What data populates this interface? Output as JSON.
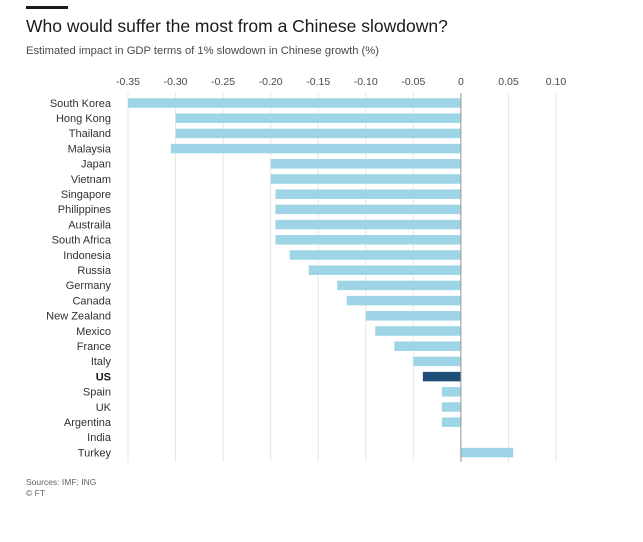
{
  "header": {
    "title": "Who would suffer the most from a Chinese slowdown?",
    "subtitle": "Estimated impact in GDP terms of 1% slowdown in Chinese growth (%)"
  },
  "footer": {
    "sources": "Sources: IMF; ING",
    "credit": "© FT"
  },
  "colors": {
    "bar": "#9dd5e6",
    "highlight": "#1f4e79",
    "grid": "#e6e6e6",
    "zero_line": "#999999"
  },
  "chart_data": {
    "type": "bar",
    "orientation": "horizontal",
    "title": "Who would suffer the most from a Chinese slowdown?",
    "subtitle": "Estimated impact in GDP terms of 1% slowdown in Chinese growth (%)",
    "xlim": [
      -0.35,
      0.1
    ],
    "xticks": [
      -0.35,
      -0.3,
      -0.25,
      -0.2,
      -0.15,
      -0.1,
      -0.05,
      0,
      0.05,
      0.1
    ],
    "xtick_labels": [
      "-0.35",
      "-0.30",
      "-0.25",
      "-0.20",
      "-0.15",
      "-0.10",
      "-0.05",
      "0",
      "0.05",
      "0.10"
    ],
    "axis_position": "top",
    "grid": true,
    "highlighted_category": "US",
    "categories": [
      "South Korea",
      "Hong Kong",
      "Thailand",
      "Malaysia",
      "Japan",
      "Vietnam",
      "Singapore",
      "Philippines",
      "Austraila",
      "South Africa",
      "Indonesia",
      "Russia",
      "Germany",
      "Canada",
      "New Zealand",
      "Mexico",
      "France",
      "Italy",
      "US",
      "Spain",
      "UK",
      "Argentina",
      "India",
      "Turkey"
    ],
    "values": [
      -0.35,
      -0.3,
      -0.3,
      -0.305,
      -0.2,
      -0.2,
      -0.195,
      -0.195,
      -0.195,
      -0.195,
      -0.18,
      -0.16,
      -0.13,
      -0.12,
      -0.1,
      -0.09,
      -0.07,
      -0.05,
      -0.04,
      -0.02,
      -0.02,
      -0.02,
      0.0,
      0.055
    ]
  }
}
